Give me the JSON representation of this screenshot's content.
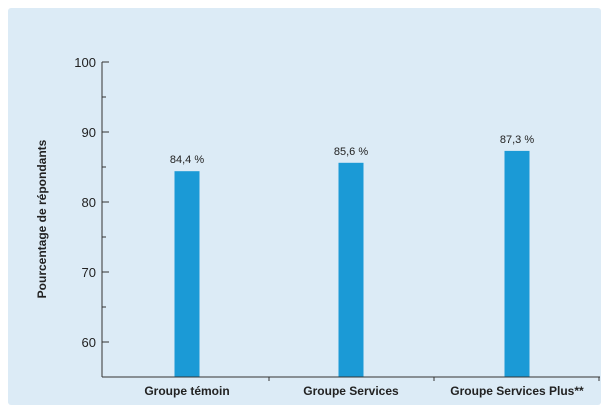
{
  "colors": {
    "panel_background": "#dcebf6",
    "bar": "#1b9ad6",
    "axis": "#333333"
  },
  "chart_data": {
    "type": "bar",
    "categories": [
      "Groupe témoin",
      "Groupe Services",
      "Groupe Services Plus**"
    ],
    "values": [
      84.4,
      85.6,
      87.3
    ],
    "data_labels": [
      "84,4 %",
      "85,6 %",
      "87,3 %"
    ],
    "ylabel": "Pourcentage de répondants",
    "xlabel": "",
    "ylim": [
      55,
      100
    ],
    "y_ticks": [
      60,
      70,
      80,
      90,
      100
    ],
    "y_minor_step": 5,
    "grid": false,
    "legend": "none"
  }
}
